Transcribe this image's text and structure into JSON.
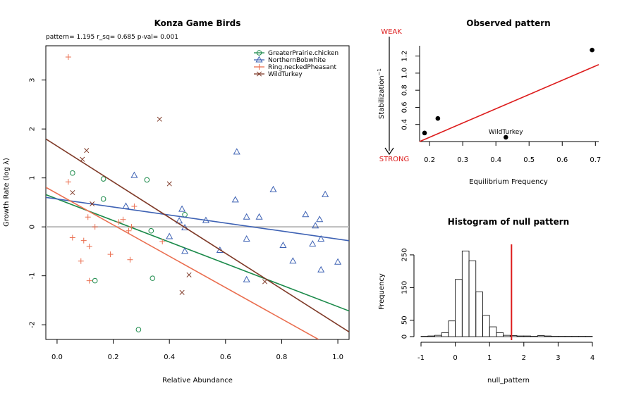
{
  "colors": {
    "GreaterPrairie.chicken": "#1b8a4a",
    "NorthernBobwhite": "#3e62b4",
    "Ring.neckedPheasant": "#ea6e4f",
    "WildTurkey": "#7f3a28",
    "red": "#dd1c1c",
    "gray": "#bcbcbc"
  },
  "chart_data": [
    {
      "type": "scatter",
      "title": "Konza Game Birds",
      "subtitle": "pattern= 1.195 r_sq= 0.685 p-val= 0.001",
      "xlabel": "Relative Abundance",
      "ylabel": "Growth Rate (log  λ)",
      "xlim": [
        -0.04,
        1.04
      ],
      "ylim": [
        -2.3,
        3.7
      ],
      "xticks": [
        0.0,
        0.2,
        0.4,
        0.6,
        0.8,
        1.0
      ],
      "xtick_labels": [
        "0.0",
        "0.2",
        "0.4",
        "0.6",
        "0.8",
        "1.0"
      ],
      "yticks": [
        -2,
        -1,
        0,
        1,
        2,
        3
      ],
      "ytick_labels": [
        "-2",
        "-1",
        "0",
        "1",
        "2",
        "3"
      ],
      "hline": 0,
      "legend": "top-right",
      "series": [
        {
          "name": "GreaterPrairie.chicken",
          "marker": "circle",
          "x": [
            0.055,
            0.165,
            0.165,
            0.32,
            0.335,
            0.34,
            0.455,
            0.135,
            0.29
          ],
          "y": [
            1.1,
            0.98,
            0.57,
            0.96,
            -0.08,
            -1.05,
            0.25,
            -1.1,
            -2.1
          ],
          "fit": {
            "intercept": 0.57,
            "slope": -2.2
          }
        },
        {
          "name": "NorthernBobwhite",
          "marker": "triangle",
          "x": [
            0.245,
            0.275,
            0.4,
            0.435,
            0.445,
            0.455,
            0.455,
            0.53,
            0.58,
            0.635,
            0.64,
            0.675,
            0.675,
            0.675,
            0.72,
            0.77,
            0.805,
            0.84,
            0.885,
            0.91,
            0.92,
            0.935,
            0.94,
            0.94,
            0.955,
            1.0
          ],
          "y": [
            0.42,
            1.05,
            -0.2,
            0.12,
            0.36,
            -0.02,
            -0.5,
            0.13,
            -0.48,
            0.55,
            1.53,
            0.2,
            -0.25,
            -1.08,
            0.2,
            0.76,
            -0.38,
            -0.7,
            0.25,
            -0.35,
            0.02,
            0.15,
            -0.25,
            -0.88,
            0.66,
            -0.72
          ],
          "fit": {
            "intercept": 0.57,
            "slope": -0.82
          }
        },
        {
          "name": "Ring.neckedPheasant",
          "marker": "plus",
          "x": [
            0.04,
            0.04,
            0.055,
            0.085,
            0.095,
            0.11,
            0.115,
            0.115,
            0.135,
            0.19,
            0.22,
            0.235,
            0.255,
            0.26,
            0.265,
            0.275,
            0.375
          ],
          "y": [
            3.47,
            0.92,
            -0.22,
            -0.7,
            -0.28,
            0.2,
            -0.4,
            -1.1,
            0.0,
            -0.56,
            0.1,
            0.15,
            -0.08,
            -0.67,
            0.0,
            0.42,
            -0.3
          ],
          "fit": {
            "intercept": 0.68,
            "slope": -3.2
          }
        },
        {
          "name": "WildTurkey",
          "marker": "x",
          "x": [
            0.055,
            0.09,
            0.105,
            0.125,
            0.365,
            0.4,
            0.445,
            0.47,
            0.74
          ],
          "y": [
            0.7,
            1.38,
            1.56,
            0.47,
            2.2,
            0.88,
            -1.34,
            -0.98,
            -1.12
          ],
          "fit": {
            "intercept": 1.65,
            "slope": -3.65
          }
        }
      ]
    },
    {
      "type": "scatter",
      "title": "Observed pattern",
      "xlabel": "Equilibrium Frequency",
      "ylabel": "Stabilization",
      "ylabel_sup": "−1",
      "arrow_top_label": "WEAK",
      "arrow_bottom_label": "STRONG",
      "xlim": [
        0.17,
        0.71
      ],
      "ylim": [
        0.2,
        1.32
      ],
      "xticks": [
        0.2,
        0.3,
        0.4,
        0.5,
        0.6,
        0.7
      ],
      "xtick_labels": [
        "0.2",
        "0.3",
        "0.4",
        "0.5",
        "0.6",
        "0.7"
      ],
      "yticks": [
        0.4,
        0.6,
        0.8,
        1.0,
        1.2
      ],
      "ytick_labels": [
        "0.4",
        "0.6",
        "0.8",
        "1.0",
        "1.2"
      ],
      "points": {
        "x": [
          0.185,
          0.225,
          0.43,
          0.69
        ],
        "y": [
          0.3,
          0.47,
          0.25,
          1.27
        ]
      },
      "point_label": {
        "text": "WildTurkey",
        "x": 0.43,
        "y": 0.25
      },
      "fit": {
        "x": [
          0.17,
          0.71
        ],
        "y": [
          0.2,
          1.1
        ]
      }
    },
    {
      "type": "bar",
      "title": "Histogram of null pattern",
      "xlabel": "null_pattern",
      "ylabel": "Frequency",
      "xlim": [
        -1,
        4
      ],
      "ylim": [
        0,
        280
      ],
      "xticks": [
        -1,
        0,
        1,
        2,
        3,
        4
      ],
      "xtick_labels": [
        "-1",
        "0",
        "1",
        "2",
        "3",
        "4"
      ],
      "yticks": [
        0,
        50,
        150,
        250
      ],
      "ytick_labels": [
        "0",
        "50",
        "150",
        "250"
      ],
      "bin_width": 0.2,
      "bin_starts": [
        -1.0,
        -0.8,
        -0.6,
        -0.4,
        -0.2,
        0.0,
        0.2,
        0.4,
        0.6,
        0.8,
        1.0,
        1.2,
        1.4,
        1.6,
        1.8,
        2.0,
        2.2,
        2.4,
        2.6,
        2.8,
        3.0,
        3.2,
        3.4,
        3.6,
        3.8
      ],
      "counts": [
        1,
        2,
        4,
        12,
        48,
        175,
        262,
        232,
        137,
        65,
        30,
        12,
        4,
        3,
        2,
        2,
        1,
        3,
        2,
        1,
        1,
        1,
        1,
        1,
        1
      ],
      "observed": 1.64
    }
  ]
}
